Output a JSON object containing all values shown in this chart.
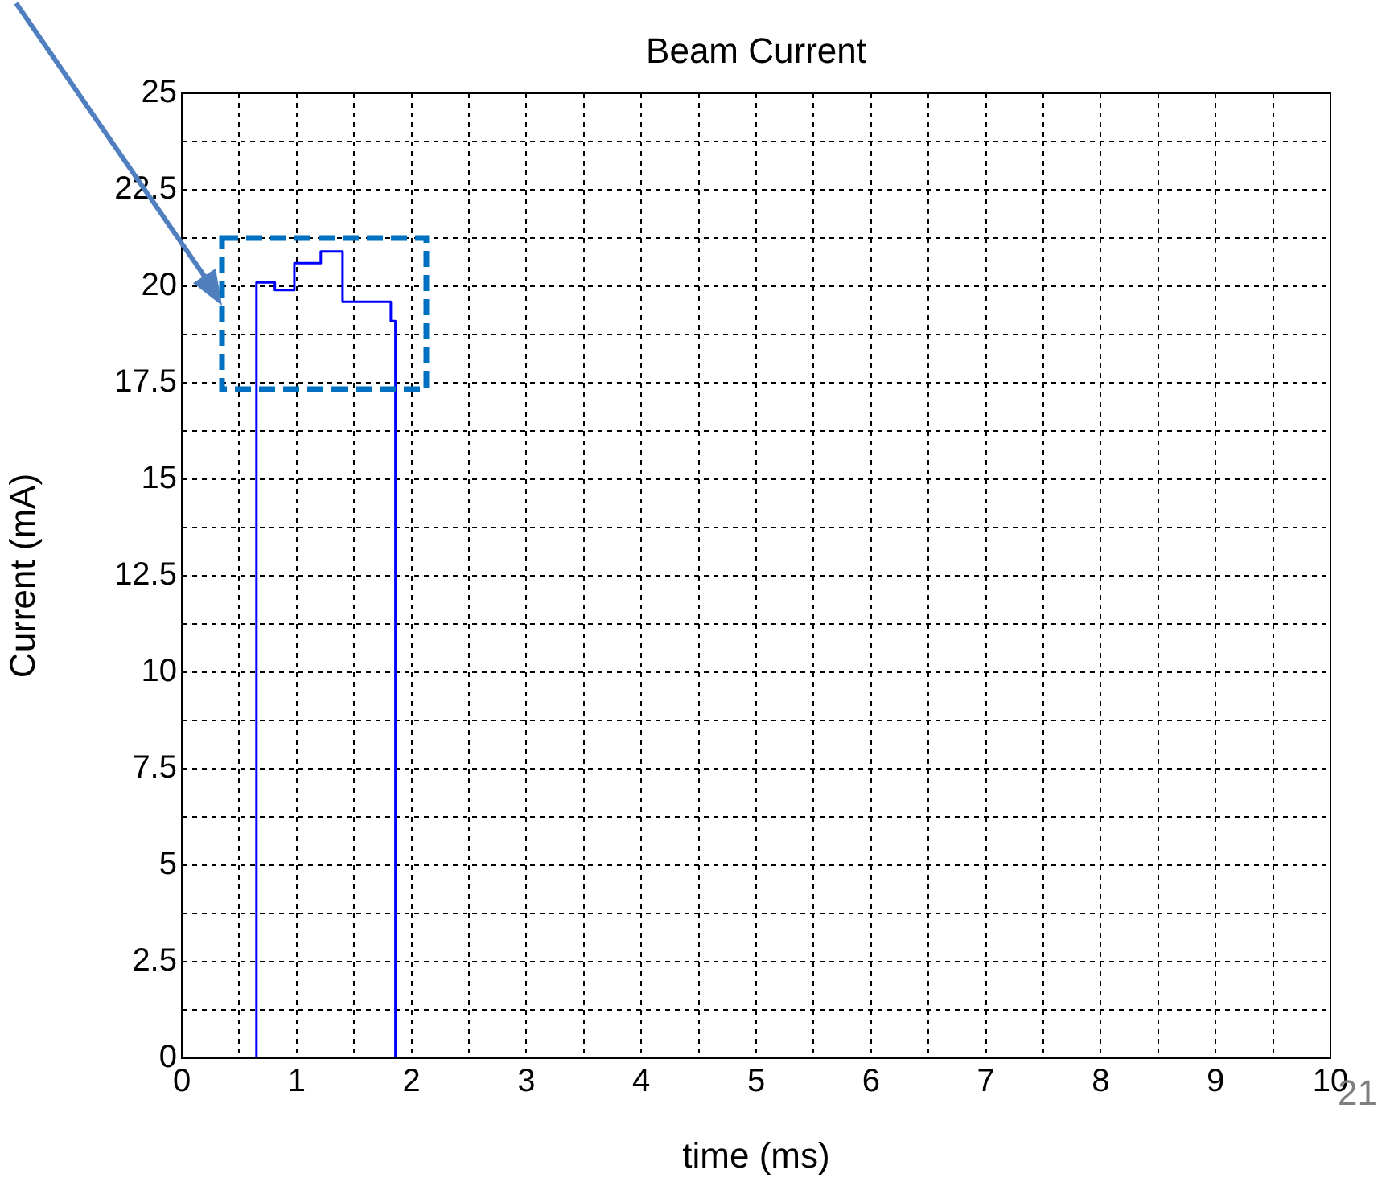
{
  "chart_data": {
    "type": "step",
    "title": "Beam Current",
    "xlabel": "time (ms)",
    "ylabel": "Current (mA)",
    "x": [
      0,
      0.65,
      0.81,
      0.98,
      1.21,
      1.4,
      1.82,
      1.86,
      10
    ],
    "series": [
      {
        "color": "#0000ff",
        "values": [
          0,
          20.1,
          19.9,
          20.6,
          20.9,
          19.6,
          19.1,
          0,
          0
        ]
      }
    ],
    "xlim": [
      0,
      10
    ],
    "ylim": [
      0,
      25
    ],
    "xticks": [
      0,
      {
        "value": 0.5,
        "label": null
      },
      1,
      {
        "value": 1.5,
        "label": null
      },
      2,
      {
        "value": 2.5,
        "label": null
      },
      3,
      {
        "value": 3.5,
        "label": null
      },
      4,
      {
        "value": 4.5,
        "label": null
      },
      5,
      {
        "value": 5.5,
        "label": null
      },
      6,
      {
        "value": 6.5,
        "label": null
      },
      7,
      {
        "value": 7.5,
        "label": null
      },
      8,
      {
        "value": 8.5,
        "label": null
      },
      9,
      {
        "value": 9.5,
        "label": null
      },
      10
    ],
    "yticks": [
      0,
      {
        "value": 1.25,
        "label": null
      },
      2.5,
      {
        "value": 3.75,
        "label": null
      },
      5,
      {
        "value": 6.25,
        "label": null
      },
      7.5,
      {
        "value": 8.75,
        "label": null
      },
      10,
      {
        "value": 11.25,
        "label": null
      },
      12.5,
      {
        "value": 13.75,
        "label": null
      },
      15,
      {
        "value": 16.25,
        "label": null
      },
      17.5,
      {
        "value": 18.75,
        "label": null
      },
      20,
      {
        "value": 21.25,
        "label": null
      },
      22.5,
      {
        "value": 23.75,
        "label": null
      },
      25
    ],
    "grid": true,
    "legend": false,
    "marker": "none",
    "line_style": "solid",
    "annotations": [
      "21"
    ]
  }
}
